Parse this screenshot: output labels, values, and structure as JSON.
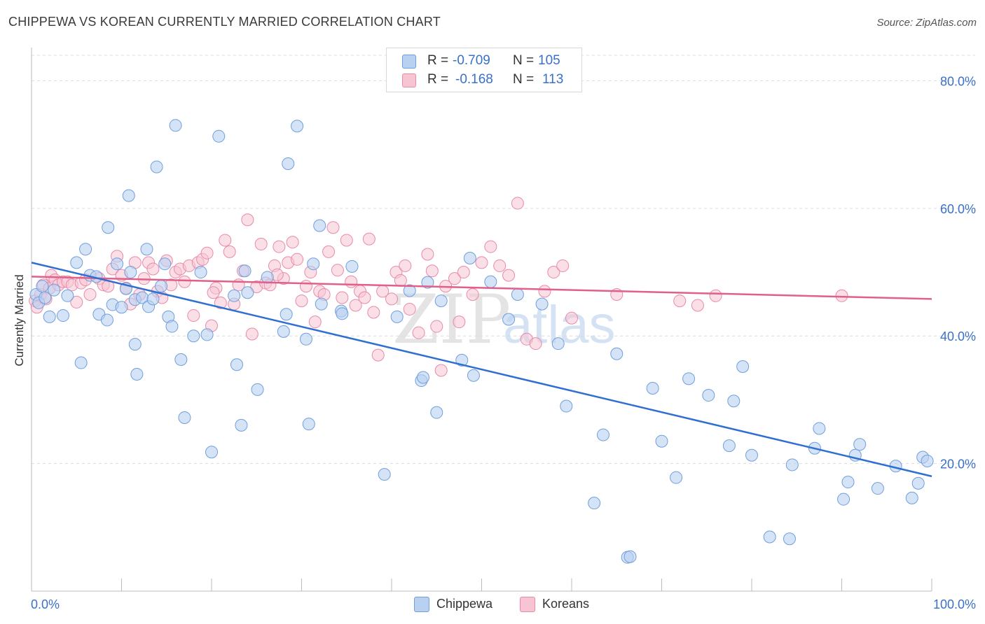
{
  "title": "CHIPPEWA VS KOREAN CURRENTLY MARRIED CORRELATION CHART",
  "source": "Source: ZipAtlas.com",
  "watermark": {
    "zip": "ZIP",
    "atlas": "atlas"
  },
  "legend_top": {
    "rows": [
      {
        "r_label": "R =",
        "r_value": "-0.709",
        "n_label": "N =",
        "n_value": "105"
      },
      {
        "r_label": "R =",
        "r_value": "-0.168",
        "n_label": "N =",
        "n_value": "113"
      }
    ]
  },
  "legend_bottom": {
    "chippewa": "Chippewa",
    "koreans": "Koreans"
  },
  "colors": {
    "chippewa_fill": "#b9d1f1",
    "chippewa_stroke": "#6f9fdc",
    "chippewa_line": "#2f6fd1",
    "koreans_fill": "#f7c4d4",
    "koreans_stroke": "#e88aa8",
    "koreans_line": "#e0608a",
    "tick_label": "#3a70c8",
    "grid": "#dcdcdc"
  },
  "chart_data": {
    "type": "scatter",
    "title": "CHIPPEWA VS KOREAN CURRENTLY MARRIED CORRELATION CHART",
    "xlabel": "",
    "ylabel": "Currently Married",
    "xlim": [
      0,
      100
    ],
    "ylim": [
      0,
      84
    ],
    "x_tick_labels": [
      "0.0%",
      "100.0%"
    ],
    "y_ticks": [
      20,
      40,
      60,
      80
    ],
    "y_tick_labels": [
      "20.0%",
      "40.0%",
      "60.0%",
      "80.0%"
    ],
    "grid": "horizontal dashed",
    "legend_placement": "top-center",
    "series": [
      {
        "name": "Chippewa",
        "r": -0.709,
        "n": 105,
        "trend": {
          "x": [
            0,
            100
          ],
          "y": [
            51.5,
            18.0
          ]
        },
        "points": [
          [
            0.5,
            46.5
          ],
          [
            0.8,
            45.2
          ],
          [
            1.2,
            47.8
          ],
          [
            1.5,
            46.0
          ],
          [
            2.0,
            43.0
          ],
          [
            2.5,
            47.2
          ],
          [
            3.5,
            43.2
          ],
          [
            4.0,
            46.3
          ],
          [
            5.0,
            51.5
          ],
          [
            5.5,
            35.8
          ],
          [
            6.0,
            53.6
          ],
          [
            6.5,
            49.5
          ],
          [
            7.2,
            49.3
          ],
          [
            7.5,
            43.4
          ],
          [
            8.4,
            42.5
          ],
          [
            8.5,
            57.0
          ],
          [
            9.0,
            44.9
          ],
          [
            9.5,
            51.3
          ],
          [
            10.0,
            44.5
          ],
          [
            10.5,
            47.4
          ],
          [
            10.8,
            62.0
          ],
          [
            11.0,
            50.0
          ],
          [
            11.5,
            45.7
          ],
          [
            11.5,
            38.7
          ],
          [
            11.7,
            34.0
          ],
          [
            12.3,
            46.0
          ],
          [
            12.8,
            53.6
          ],
          [
            13.0,
            44.6
          ],
          [
            13.5,
            45.8
          ],
          [
            13.9,
            66.5
          ],
          [
            14.4,
            47.8
          ],
          [
            14.8,
            51.3
          ],
          [
            15.2,
            43.0
          ],
          [
            15.6,
            41.5
          ],
          [
            16.0,
            73.0
          ],
          [
            16.6,
            36.3
          ],
          [
            17.0,
            27.2
          ],
          [
            18.0,
            40.0
          ],
          [
            18.8,
            50.0
          ],
          [
            19.5,
            40.2
          ],
          [
            20.0,
            21.8
          ],
          [
            20.8,
            71.3
          ],
          [
            22.5,
            46.3
          ],
          [
            22.8,
            35.5
          ],
          [
            23.3,
            26.0
          ],
          [
            23.7,
            50.2
          ],
          [
            24.0,
            46.8
          ],
          [
            25.1,
            31.6
          ],
          [
            26.2,
            49.2
          ],
          [
            28.0,
            40.7
          ],
          [
            28.3,
            43.4
          ],
          [
            28.5,
            67.0
          ],
          [
            29.5,
            72.9
          ],
          [
            30.5,
            39.5
          ],
          [
            30.8,
            26.2
          ],
          [
            31.3,
            51.3
          ],
          [
            32.0,
            57.3
          ],
          [
            32.2,
            45.0
          ],
          [
            34.4,
            43.9
          ],
          [
            34.5,
            43.5
          ],
          [
            35.6,
            50.9
          ],
          [
            39.2,
            18.3
          ],
          [
            40.6,
            43.0
          ],
          [
            42.0,
            47.1
          ],
          [
            43.3,
            33.0
          ],
          [
            43.5,
            33.5
          ],
          [
            44.0,
            48.4
          ],
          [
            45.0,
            28.0
          ],
          [
            45.5,
            45.5
          ],
          [
            47.8,
            36.2
          ],
          [
            48.7,
            52.2
          ],
          [
            49.1,
            33.8
          ],
          [
            51.0,
            48.5
          ],
          [
            53.0,
            42.6
          ],
          [
            54.0,
            46.5
          ],
          [
            56.7,
            45.0
          ],
          [
            58.5,
            38.8
          ],
          [
            59.4,
            29.0
          ],
          [
            62.5,
            13.8
          ],
          [
            63.5,
            24.5
          ],
          [
            65.0,
            37.2
          ],
          [
            66.2,
            5.3
          ],
          [
            66.5,
            5.4
          ],
          [
            69.0,
            31.8
          ],
          [
            70.0,
            23.5
          ],
          [
            71.6,
            17.8
          ],
          [
            73.0,
            33.3
          ],
          [
            75.2,
            30.7
          ],
          [
            77.5,
            22.8
          ],
          [
            78.0,
            29.8
          ],
          [
            79.0,
            35.2
          ],
          [
            80.0,
            21.3
          ],
          [
            82.0,
            8.5
          ],
          [
            84.2,
            8.2
          ],
          [
            84.5,
            19.8
          ],
          [
            87.0,
            22.4
          ],
          [
            87.5,
            25.5
          ],
          [
            90.2,
            14.4
          ],
          [
            90.7,
            17.1
          ],
          [
            91.5,
            21.3
          ],
          [
            92.0,
            23.0
          ],
          [
            94.0,
            16.1
          ],
          [
            96.0,
            19.6
          ],
          [
            97.8,
            14.6
          ],
          [
            98.5,
            16.9
          ],
          [
            99.0,
            21.0
          ],
          [
            99.5,
            20.4
          ]
        ]
      },
      {
        "name": "Koreans",
        "r": -0.168,
        "n": 113,
        "trend": {
          "x": [
            0,
            100
          ],
          "y": [
            49.3,
            45.8
          ]
        },
        "points": [
          [
            0.4,
            45.5
          ],
          [
            0.6,
            44.5
          ],
          [
            1.0,
            46.5
          ],
          [
            1.3,
            48.0
          ],
          [
            1.6,
            45.8
          ],
          [
            2.0,
            47.5
          ],
          [
            2.2,
            49.5
          ],
          [
            2.6,
            48.8
          ],
          [
            3.0,
            48.0
          ],
          [
            3.5,
            48.5
          ],
          [
            4.0,
            48.5
          ],
          [
            4.5,
            48.0
          ],
          [
            5.0,
            45.3
          ],
          [
            5.5,
            48.3
          ],
          [
            6.0,
            48.8
          ],
          [
            6.5,
            46.5
          ],
          [
            7.5,
            49.0
          ],
          [
            8.0,
            48.0
          ],
          [
            8.5,
            47.8
          ],
          [
            9.0,
            50.5
          ],
          [
            9.5,
            52.5
          ],
          [
            10.0,
            49.5
          ],
          [
            10.5,
            47.5
          ],
          [
            11.0,
            45.0
          ],
          [
            11.5,
            51.5
          ],
          [
            12.0,
            46.5
          ],
          [
            12.5,
            49.0
          ],
          [
            13.0,
            51.5
          ],
          [
            13.5,
            50.5
          ],
          [
            14.0,
            47.0
          ],
          [
            14.5,
            46.0
          ],
          [
            15.0,
            51.8
          ],
          [
            15.5,
            48.0
          ],
          [
            16.0,
            50.0
          ],
          [
            16.5,
            50.5
          ],
          [
            17.0,
            48.5
          ],
          [
            17.5,
            51.0
          ],
          [
            18.0,
            43.2
          ],
          [
            18.5,
            51.5
          ],
          [
            19.0,
            52.0
          ],
          [
            19.5,
            53.0
          ],
          [
            20.0,
            41.6
          ],
          [
            20.5,
            47.5
          ],
          [
            21.0,
            45.2
          ],
          [
            21.5,
            55.0
          ],
          [
            22.0,
            53.2
          ],
          [
            22.5,
            45.0
          ],
          [
            23.0,
            48.0
          ],
          [
            23.5,
            50.2
          ],
          [
            24.0,
            58.2
          ],
          [
            24.5,
            40.3
          ],
          [
            25.0,
            47.7
          ],
          [
            25.5,
            54.4
          ],
          [
            26.0,
            48.3
          ],
          [
            26.5,
            48.0
          ],
          [
            27.0,
            51.0
          ],
          [
            27.5,
            54.0
          ],
          [
            28.0,
            49.0
          ],
          [
            28.5,
            51.5
          ],
          [
            29.0,
            54.7
          ],
          [
            29.5,
            52.0
          ],
          [
            30.0,
            45.5
          ],
          [
            30.5,
            47.8
          ],
          [
            31.0,
            50.0
          ],
          [
            31.5,
            42.2
          ],
          [
            32.0,
            47.0
          ],
          [
            32.5,
            46.5
          ],
          [
            33.0,
            53.2
          ],
          [
            33.5,
            57.0
          ],
          [
            34.0,
            50.3
          ],
          [
            34.5,
            46.0
          ],
          [
            35.0,
            55.0
          ],
          [
            35.5,
            48.5
          ],
          [
            36.0,
            44.8
          ],
          [
            36.5,
            47.0
          ],
          [
            37.0,
            46.0
          ],
          [
            37.5,
            55.2
          ],
          [
            38.0,
            43.7
          ],
          [
            38.5,
            37.0
          ],
          [
            39.0,
            47.0
          ],
          [
            40.0,
            45.8
          ],
          [
            40.5,
            50.0
          ],
          [
            41.0,
            48.7
          ],
          [
            41.5,
            51.0
          ],
          [
            42.0,
            44.2
          ],
          [
            43.0,
            40.5
          ],
          [
            44.0,
            52.8
          ],
          [
            44.5,
            50.2
          ],
          [
            45.0,
            41.5
          ],
          [
            45.5,
            34.6
          ],
          [
            46.0,
            47.8
          ],
          [
            47.0,
            49.0
          ],
          [
            47.5,
            42.2
          ],
          [
            48.0,
            50.0
          ],
          [
            49.0,
            46.5
          ],
          [
            50.0,
            51.5
          ],
          [
            51.0,
            54.0
          ],
          [
            52.0,
            51.0
          ],
          [
            53.0,
            49.5
          ],
          [
            54.0,
            60.8
          ],
          [
            55.0,
            39.5
          ],
          [
            56.0,
            38.8
          ],
          [
            57.0,
            47.0
          ],
          [
            58.0,
            50.0
          ],
          [
            59.0,
            51.0
          ],
          [
            60.0,
            42.8
          ],
          [
            65.0,
            46.5
          ],
          [
            72.0,
            45.5
          ],
          [
            74.0,
            44.8
          ],
          [
            76.0,
            46.3
          ],
          [
            90.0,
            46.3
          ],
          [
            20.2,
            46.8
          ],
          [
            27.3,
            49.6
          ]
        ]
      }
    ]
  }
}
